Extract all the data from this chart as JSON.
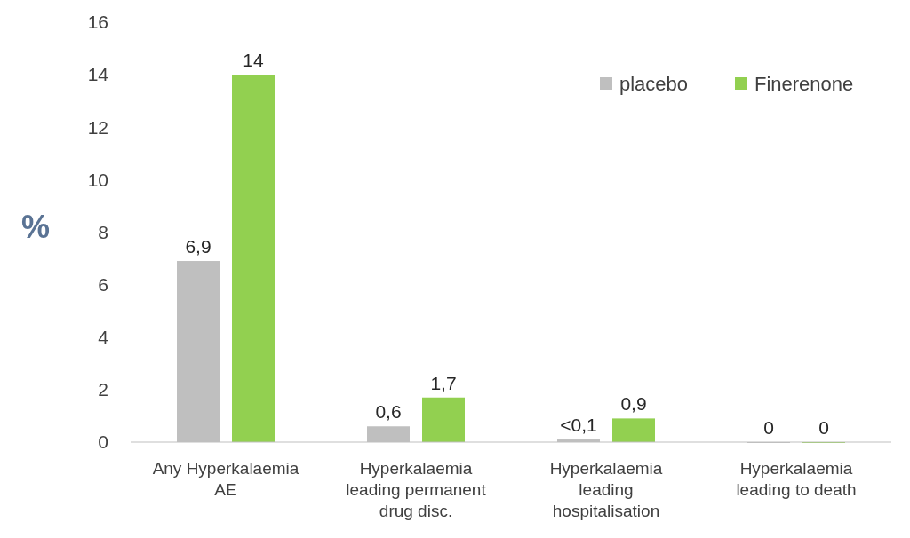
{
  "chart_data": {
    "type": "bar",
    "ylabel": "%",
    "categories": [
      "Any Hyperkalaemia AE",
      "Hyperkalaemia leading permanent drug disc.",
      "Hyperkalaemia leading hospitalisation",
      "Hyperkalaemia leading to death"
    ],
    "series": [
      {
        "name": "placebo",
        "color": "#bfbfbf",
        "values": [
          6.9,
          0.6,
          0.1,
          0
        ],
        "value_labels": [
          "6,9",
          "0,6",
          "<0,1",
          "0"
        ]
      },
      {
        "name": "Finerenone",
        "color": "#92d050",
        "values": [
          14,
          1.7,
          0.9,
          0
        ],
        "value_labels": [
          "14",
          "1,7",
          "0,9",
          "0"
        ]
      }
    ],
    "ylim": [
      0,
      16
    ],
    "yticks": [
      0,
      2,
      4,
      6,
      8,
      10,
      12,
      14,
      16
    ],
    "grid": false,
    "legend": "top right"
  }
}
